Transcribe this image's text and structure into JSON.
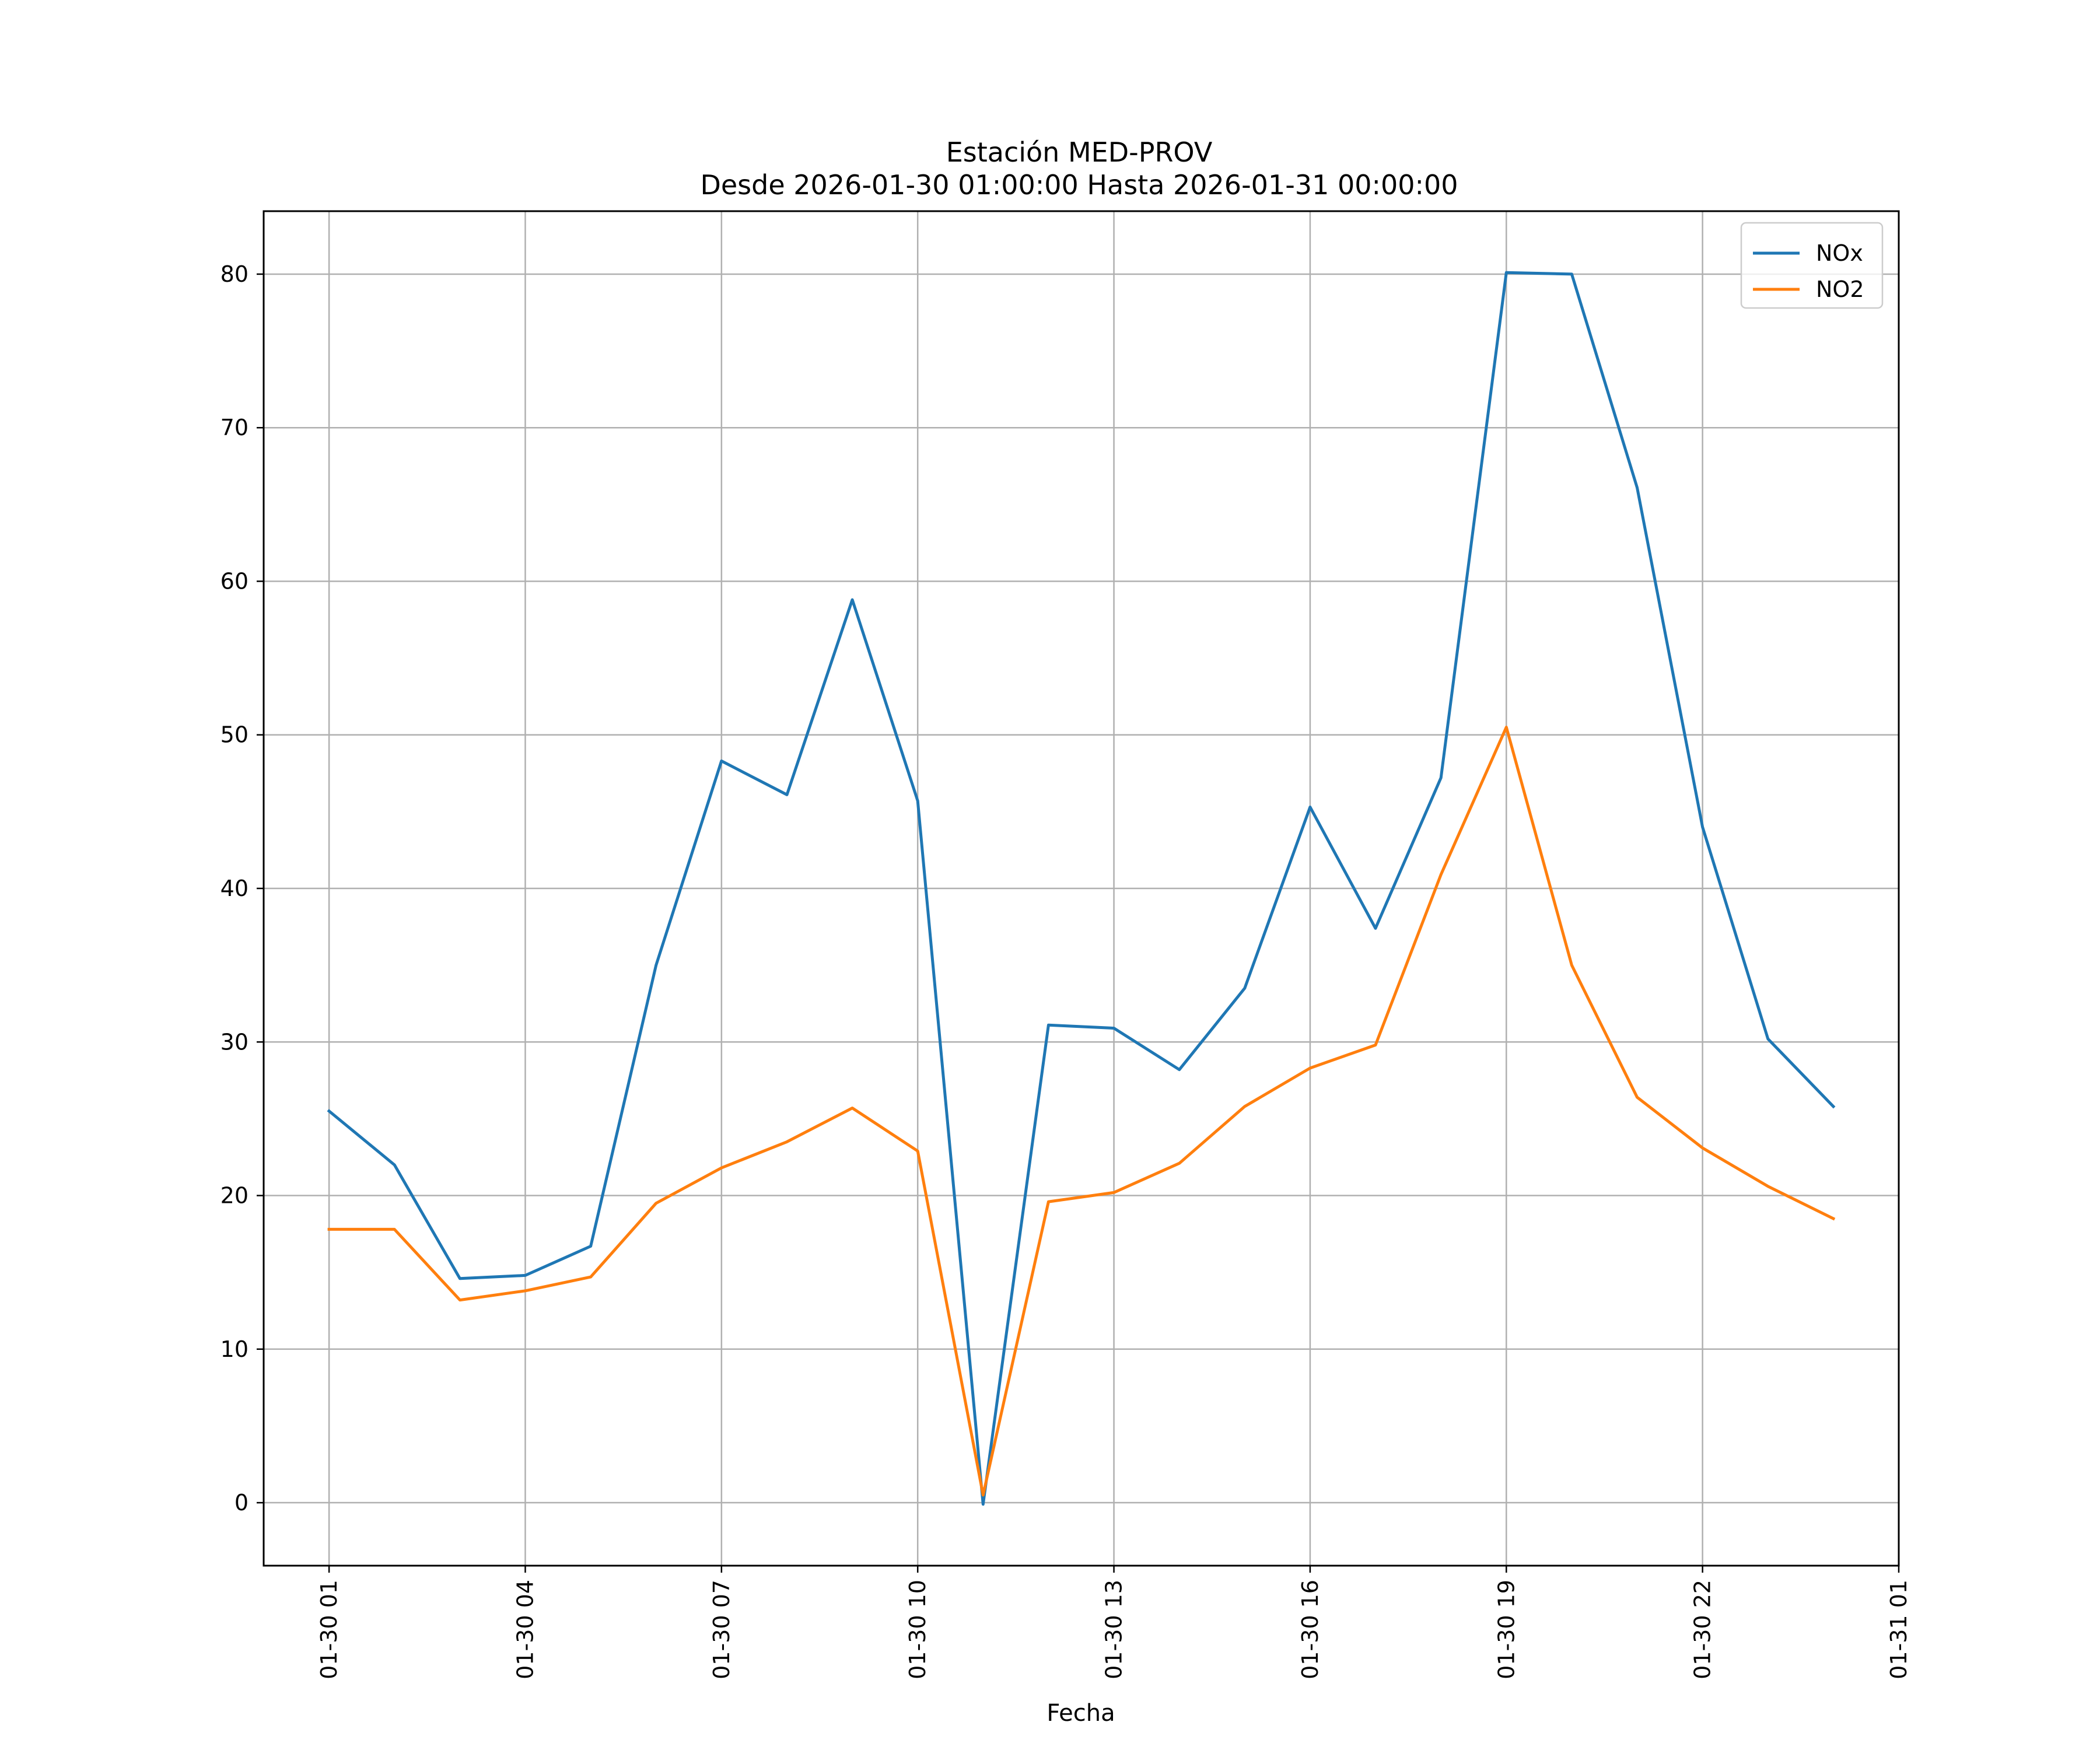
{
  "chart_data": {
    "type": "line",
    "title": "Estación MED-PROV",
    "subtitle": "Desde 2026-01-30 01:00:00 Hasta 2026-01-31 00:00:00",
    "xlabel": "Fecha",
    "ylabel": "",
    "x_range": [
      "2026-01-30 00:00",
      "2026-01-31 01:00"
    ],
    "ylim": [
      -4.1,
      84.1
    ],
    "grid": true,
    "legend_position": "top-right",
    "x_ticks": [
      {
        "x": "2026-01-30 01:00",
        "label": "01-30 01"
      },
      {
        "x": "2026-01-30 04:00",
        "label": "01-30 04"
      },
      {
        "x": "2026-01-30 07:00",
        "label": "01-30 07"
      },
      {
        "x": "2026-01-30 10:00",
        "label": "01-30 10"
      },
      {
        "x": "2026-01-30 13:00",
        "label": "01-30 13"
      },
      {
        "x": "2026-01-30 16:00",
        "label": "01-30 16"
      },
      {
        "x": "2026-01-30 19:00",
        "label": "01-30 19"
      },
      {
        "x": "2026-01-30 22:00",
        "label": "01-30 22"
      },
      {
        "x": "2026-01-31 01:00",
        "label": "01-31 01"
      }
    ],
    "y_ticks": [
      0,
      10,
      20,
      30,
      40,
      50,
      60,
      70,
      80
    ],
    "x": [
      "2026-01-30 01:00",
      "2026-01-30 02:00",
      "2026-01-30 03:00",
      "2026-01-30 04:00",
      "2026-01-30 05:00",
      "2026-01-30 06:00",
      "2026-01-30 07:00",
      "2026-01-30 08:00",
      "2026-01-30 09:00",
      "2026-01-30 10:00",
      "2026-01-30 11:00",
      "2026-01-30 12:00",
      "2026-01-30 13:00",
      "2026-01-30 14:00",
      "2026-01-30 15:00",
      "2026-01-30 16:00",
      "2026-01-30 17:00",
      "2026-01-30 18:00",
      "2026-01-30 19:00",
      "2026-01-30 20:00",
      "2026-01-30 21:00",
      "2026-01-30 22:00",
      "2026-01-30 23:00",
      "2026-01-31 00:00"
    ],
    "series": [
      {
        "name": "NOx",
        "color": "#1f77b4",
        "values": [
          25.5,
          22.0,
          14.6,
          14.8,
          16.7,
          35.0,
          48.3,
          46.1,
          58.8,
          45.7,
          -0.1,
          31.1,
          30.9,
          28.2,
          33.5,
          45.3,
          37.4,
          47.2,
          80.1,
          80.0,
          66.1,
          44.0,
          30.2,
          25.8
        ]
      },
      {
        "name": "NO2",
        "color": "#ff7f0e",
        "values": [
          17.8,
          17.8,
          13.2,
          13.8,
          14.7,
          19.5,
          21.8,
          23.5,
          25.7,
          22.9,
          0.5,
          19.6,
          20.2,
          22.1,
          25.8,
          28.3,
          29.8,
          40.9,
          50.5,
          35.0,
          26.4,
          23.1,
          20.6,
          18.5
        ]
      }
    ]
  }
}
